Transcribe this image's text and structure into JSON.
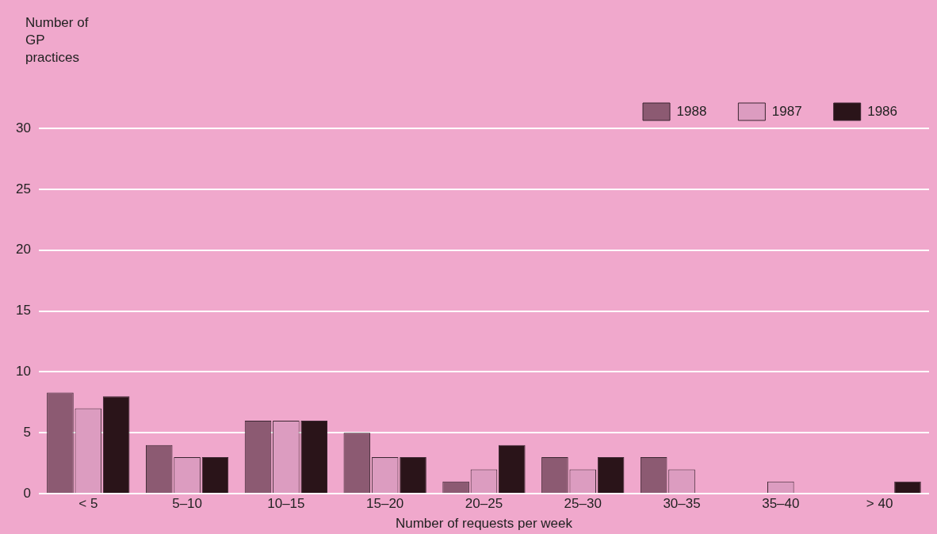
{
  "chart_data": {
    "type": "bar",
    "xlabel": "Number of requests per week",
    "ylabel": "Number of GP practices",
    "categories": [
      "< 5",
      "5–10",
      "10–15",
      "15–20",
      "20–25",
      "25–30",
      "30–35",
      "35–40",
      "> 40"
    ],
    "series": [
      {
        "name": "1988",
        "color": "#8c5a72",
        "values": [
          8.3,
          4,
          6,
          5,
          1,
          3,
          3,
          0,
          0
        ]
      },
      {
        "name": "1987",
        "color": "#dc9cc0",
        "values": [
          7,
          3,
          6,
          3,
          2,
          2,
          2,
          1,
          0
        ]
      },
      {
        "name": "1986",
        "color": "#2a1419",
        "values": [
          8,
          3,
          6,
          3,
          4,
          3,
          0,
          0,
          1
        ]
      }
    ],
    "ylim": [
      0,
      30
    ],
    "yticks": [
      0,
      5,
      10,
      15,
      20,
      25,
      30
    ],
    "grid": "y",
    "legend": "top right"
  }
}
